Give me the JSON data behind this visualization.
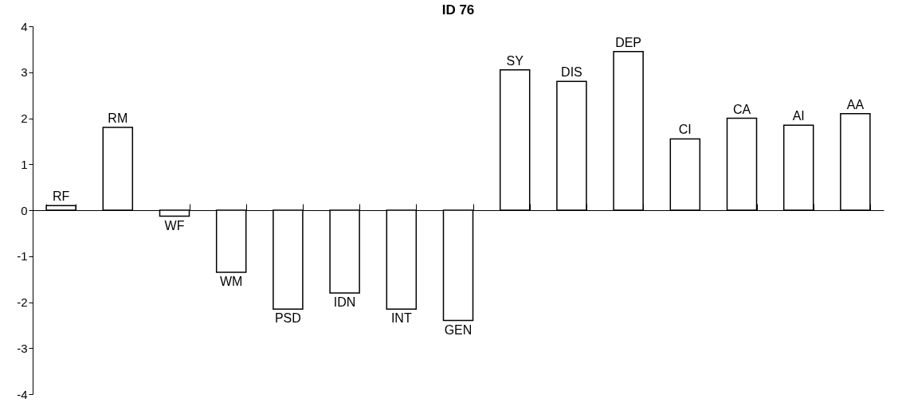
{
  "chart_data": {
    "type": "bar",
    "title": "ID 76",
    "categories": [
      "RF",
      "RM",
      "WF",
      "WM",
      "PSD",
      "IDN",
      "INT",
      "GEN",
      "SY",
      "DIS",
      "DEP",
      "CI",
      "CA",
      "AI",
      "AA"
    ],
    "values": [
      0.1,
      1.8,
      -0.13,
      -1.35,
      -2.15,
      -1.8,
      -2.15,
      -2.4,
      3.05,
      2.8,
      3.45,
      1.55,
      2.0,
      1.85,
      2.1
    ],
    "color": "#ffffff",
    "ylim": [
      -4,
      4
    ],
    "yticks": [
      -4,
      -3,
      -2,
      -1,
      0,
      1,
      2,
      3,
      4
    ]
  }
}
